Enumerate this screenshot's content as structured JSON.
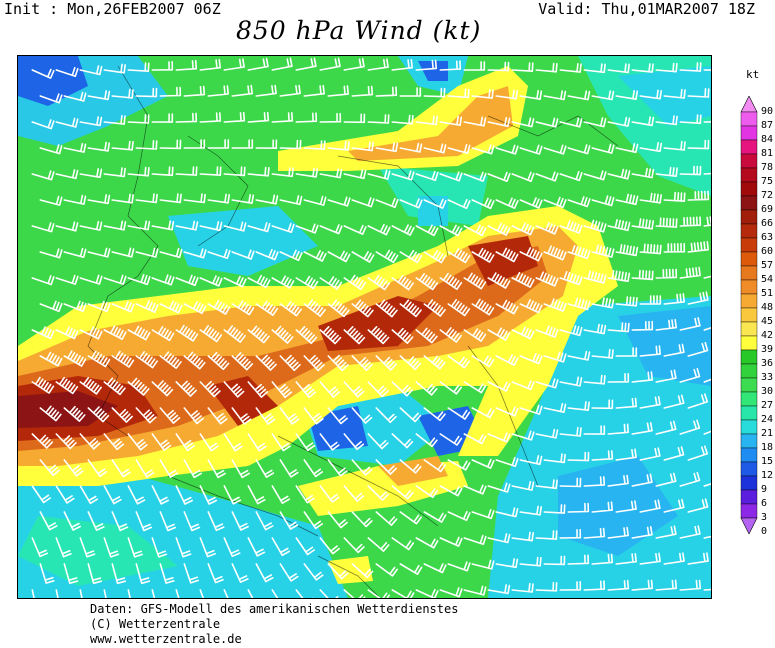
{
  "header": {
    "init": "Init : Mon,26FEB2007 06Z",
    "valid": "Valid: Thu,01MAR2007 18Z",
    "title": "850 hPa Wind (kt)"
  },
  "legend": {
    "unit": "kt",
    "ticks": [
      "90",
      "87",
      "84",
      "81",
      "78",
      "75",
      "72",
      "69",
      "66",
      "63",
      "60",
      "57",
      "54",
      "51",
      "48",
      "45",
      "42",
      "39",
      "36",
      "33",
      "30",
      "27",
      "24",
      "21",
      "18",
      "15",
      "12",
      "9",
      "6",
      "3",
      "0"
    ],
    "colors": [
      "#f28cf2",
      "#ee5cee",
      "#e234e2",
      "#e6147e",
      "#c80a3c",
      "#b40a1e",
      "#a00a0a",
      "#8c1414",
      "#a01e0a",
      "#b42a0a",
      "#c83c0a",
      "#dc5a0a",
      "#e6781e",
      "#f08c28",
      "#f6aa32",
      "#fac83c",
      "#fae650",
      "#ffff3c",
      "#28c828",
      "#32d23c",
      "#3cdc50",
      "#32e678",
      "#28e6aa",
      "#28dcdc",
      "#28b4f0",
      "#1e8cf0",
      "#1e5ae6",
      "#1e32dc",
      "#5a1edc",
      "#8c28e6",
      "#b464f0"
    ]
  },
  "map": {
    "field_colors": {
      "blue": "#1e64e6",
      "cyan": "#28d2e6",
      "teal": "#28e6b4",
      "green": "#3cd84a",
      "yellow": "#ffff3c",
      "orange": "#f6aa32",
      "darkorange": "#dc6a1a",
      "red": "#b4280a",
      "darkred": "#8c1414"
    }
  },
  "footer": {
    "line1": "Daten: GFS-Modell des amerikanischen Wetterdienstes",
    "line2": "(C) Wetterzentrale",
    "line3": "www.wetterzentrale.de"
  }
}
